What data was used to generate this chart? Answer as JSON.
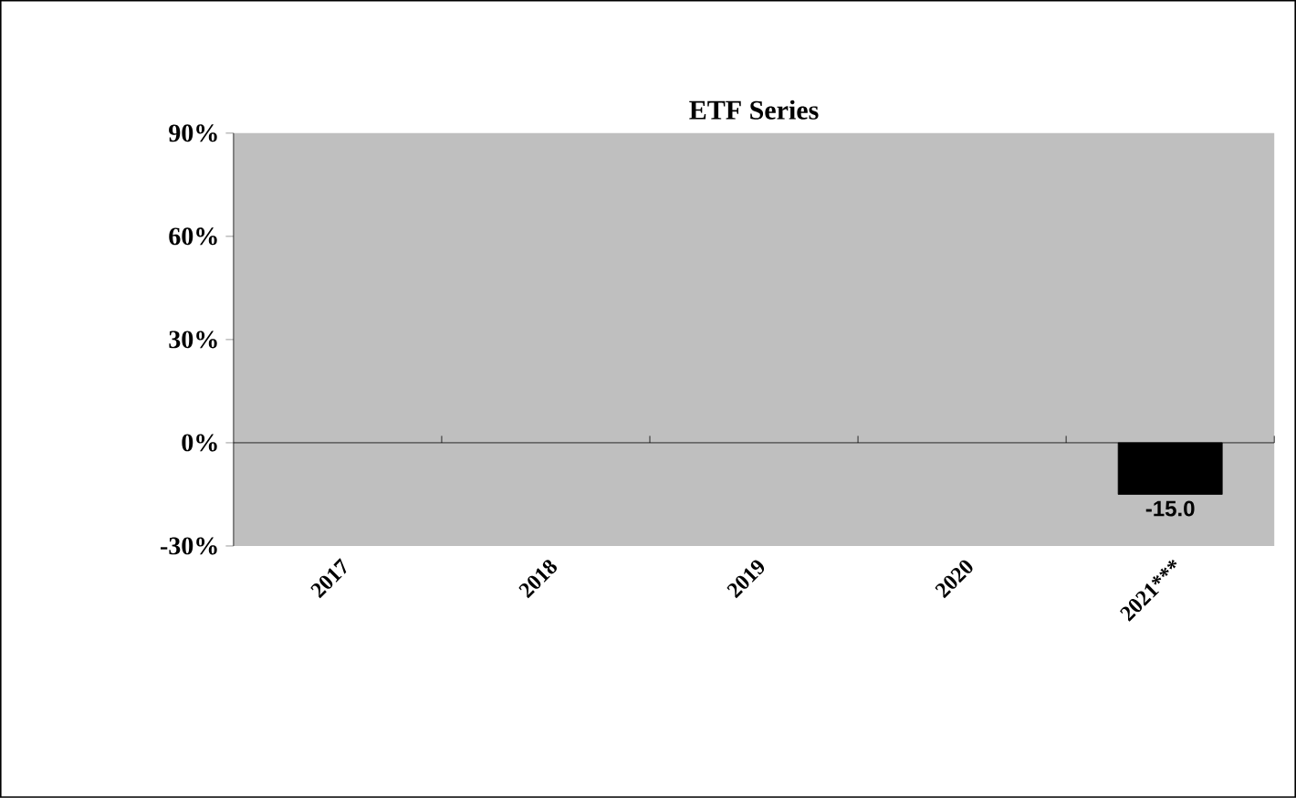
{
  "chart_data": {
    "type": "bar",
    "title": "ETF Series",
    "categories": [
      "2017",
      "2018",
      "2019",
      "2020",
      "2021***"
    ],
    "series": [
      {
        "color": "#000000",
        "values": [
          null,
          null,
          null,
          null,
          -15.0
        ]
      }
    ],
    "value_labels": [
      null,
      null,
      null,
      null,
      "-15.0"
    ],
    "ylim": [
      -30,
      90
    ],
    "yticks": [
      {
        "value": -30,
        "label": "-30%"
      },
      {
        "value": 0,
        "label": "0%"
      },
      {
        "value": 30,
        "label": "30%"
      },
      {
        "value": 60,
        "label": "60%"
      },
      {
        "value": 90,
        "label": "90%"
      }
    ]
  }
}
